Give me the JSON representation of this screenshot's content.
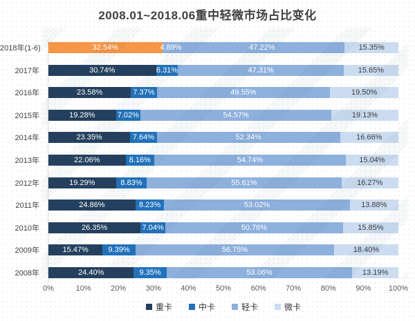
{
  "title": "2008.01~2018.06重中轻微市场占比变化",
  "colors": {
    "title_text": "#404040",
    "axis_text": "#595959",
    "axis_line": "#d6d6d6",
    "value_label_light": "#ffffff",
    "value_label_dark": "#3b3b3b",
    "highlight_orange": "#F79646"
  },
  "chart_data": {
    "type": "bar",
    "stacked": true,
    "orientation": "horizontal",
    "title": "2008.01~2018.06重中轻微市场占比变化",
    "xlabel": "",
    "ylabel": "",
    "xlim": [
      0,
      100
    ],
    "x_ticks": [
      "0%",
      "10%",
      "20%",
      "30%",
      "40%",
      "50%",
      "60%",
      "70%",
      "80%",
      "90%",
      "100%"
    ],
    "grid": false,
    "legend_position": "bottom",
    "value_suffix": "%",
    "categories": [
      "2018年(1-6)",
      "2017年",
      "2016年",
      "2015年",
      "2014年",
      "2013年",
      "2012年",
      "2011年",
      "2010年",
      "2009年",
      "2008年"
    ],
    "series": [
      {
        "name": "重卡",
        "color": "#24405E",
        "values": [
          32.54,
          30.74,
          23.58,
          19.28,
          23.35,
          22.06,
          19.29,
          24.86,
          26.35,
          15.47,
          24.4
        ]
      },
      {
        "name": "中卡",
        "color": "#2272BB",
        "values": [
          4.89,
          6.31,
          7.37,
          7.02,
          7.64,
          8.16,
          8.83,
          8.23,
          7.04,
          9.39,
          9.35
        ]
      },
      {
        "name": "轻卡",
        "color": "#8DB0DD",
        "values": [
          47.22,
          47.31,
          49.55,
          54.57,
          52.34,
          54.74,
          55.61,
          53.02,
          50.76,
          56.75,
          53.06
        ]
      },
      {
        "name": "微卡",
        "color": "#CBDCF0",
        "values": [
          15.35,
          15.65,
          19.5,
          19.13,
          16.66,
          15.04,
          16.27,
          13.88,
          15.85,
          18.4,
          13.19
        ]
      }
    ],
    "label_text_colors": [
      "#ffffff",
      "#ffffff",
      "#ffffff",
      "#3b3b3b"
    ],
    "highlight": {
      "category": "2018年(1-6)",
      "segment_color_overrides": {
        "重卡": "#F79646",
        "中卡": "#8DB0DD"
      }
    }
  },
  "legend": {
    "items": [
      {
        "label": "重卡",
        "color": "#24405E"
      },
      {
        "label": "中卡",
        "color": "#2272BB"
      },
      {
        "label": "轻卡",
        "color": "#8DB0DD"
      },
      {
        "label": "微卡",
        "color": "#CBDCF0"
      }
    ]
  }
}
